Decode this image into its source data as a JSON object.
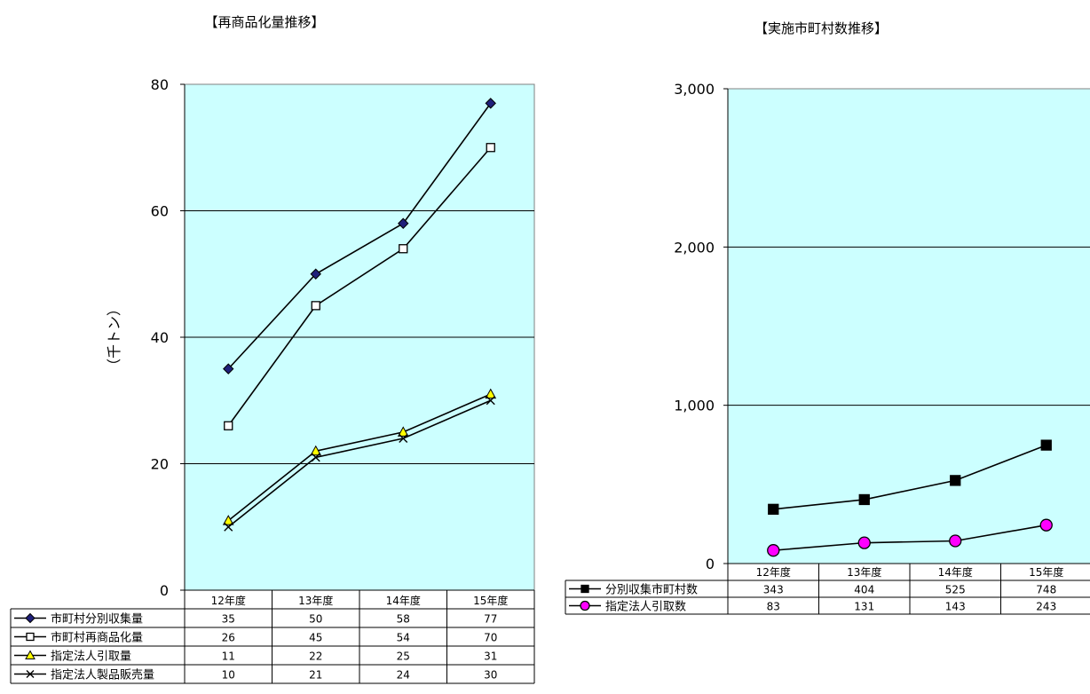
{
  "chart_data": [
    {
      "type": "line",
      "title": "【再商品化量推移】",
      "ylabel": "（千トン）",
      "categories": [
        "12年度",
        "13年度",
        "14年度",
        "15年度"
      ],
      "ylim": [
        0,
        80
      ],
      "yticks": [
        0,
        20,
        40,
        60,
        80
      ],
      "grid": true,
      "plot_background": "#ccffff",
      "legend_placement": "data-table-below",
      "series": [
        {
          "name": "市町村分別収集量",
          "values": [
            35,
            50,
            58,
            77
          ],
          "marker": "diamond",
          "color": "#000000",
          "marker_fill": "#1f1f7a"
        },
        {
          "name": "市町村再商品化量",
          "values": [
            26,
            45,
            54,
            70
          ],
          "marker": "square-open",
          "color": "#000000",
          "marker_fill": "#ffffff"
        },
        {
          "name": "指定法人引取量",
          "values": [
            11,
            22,
            25,
            31
          ],
          "marker": "triangle",
          "color": "#000000",
          "marker_fill": "#ffff00"
        },
        {
          "name": "指定法人製品販売量",
          "values": [
            10,
            21,
            24,
            30
          ],
          "marker": "x",
          "color": "#000000",
          "marker_fill": "none"
        }
      ]
    },
    {
      "type": "line",
      "title": "【実施市町村数推移】",
      "categories": [
        "12年度",
        "13年度",
        "14年度",
        "15年度"
      ],
      "ylim": [
        0,
        3000
      ],
      "yticks": [
        0,
        1000,
        2000,
        3000
      ],
      "ytick_labels": [
        "0",
        "1,000",
        "2,000",
        "3,000"
      ],
      "grid": true,
      "plot_background": "#ccffff",
      "legend_placement": "data-table-below",
      "series": [
        {
          "name": "分別収集市町村数",
          "values": [
            343,
            404,
            525,
            748
          ],
          "marker": "square",
          "color": "#000000",
          "marker_fill": "#000000"
        },
        {
          "name": "指定法人引取数",
          "values": [
            83,
            131,
            143,
            243
          ],
          "marker": "circle",
          "color": "#000000",
          "marker_fill": "#ff00ff"
        }
      ]
    }
  ]
}
